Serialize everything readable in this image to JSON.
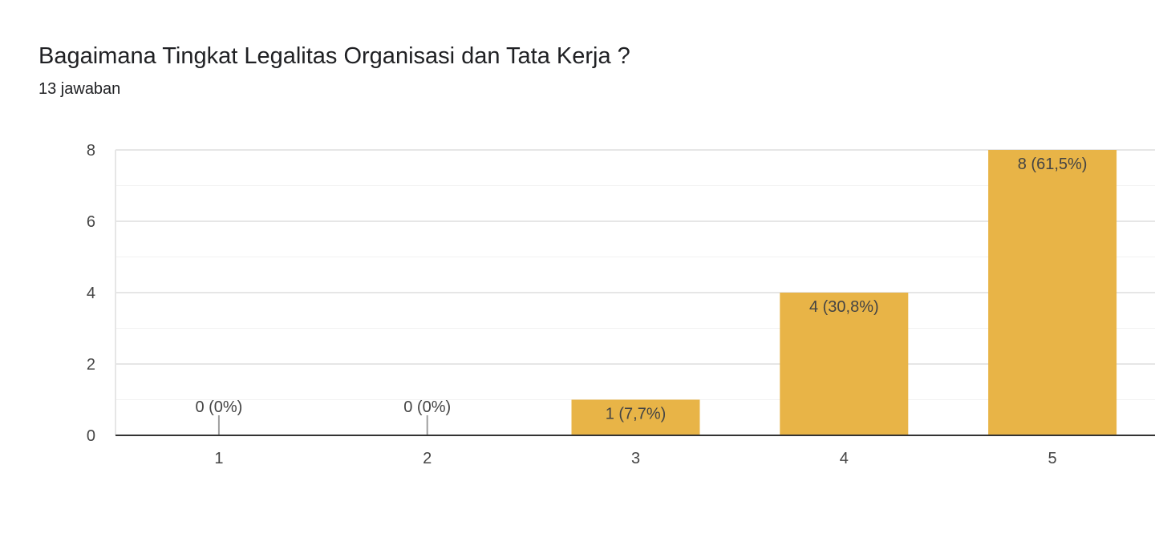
{
  "chart_data": {
    "type": "bar",
    "title": "Bagaimana Tingkat Legalitas Organisasi dan Tata Kerja ?",
    "subtitle": "13 jawaban",
    "categories": [
      "1",
      "2",
      "3",
      "4",
      "5"
    ],
    "values": [
      0,
      0,
      1,
      4,
      8
    ],
    "data_labels": [
      "0 (0%)",
      "0 (0%)",
      "1 (7,7%)",
      "4 (30,8%)",
      "8 (61,5%)"
    ],
    "ylim": [
      0,
      8
    ],
    "yticks": [
      0,
      2,
      4,
      6,
      8
    ],
    "xlabel": "",
    "ylabel": "",
    "grid": true,
    "legend": "none",
    "colors": {
      "bar": "#E8B447",
      "major_grid": "#E6E6E6",
      "minor_grid": "#F2F2F2",
      "axis": "#333333",
      "zero_stub": "#9E9E9E",
      "label_text": "#444444"
    }
  }
}
